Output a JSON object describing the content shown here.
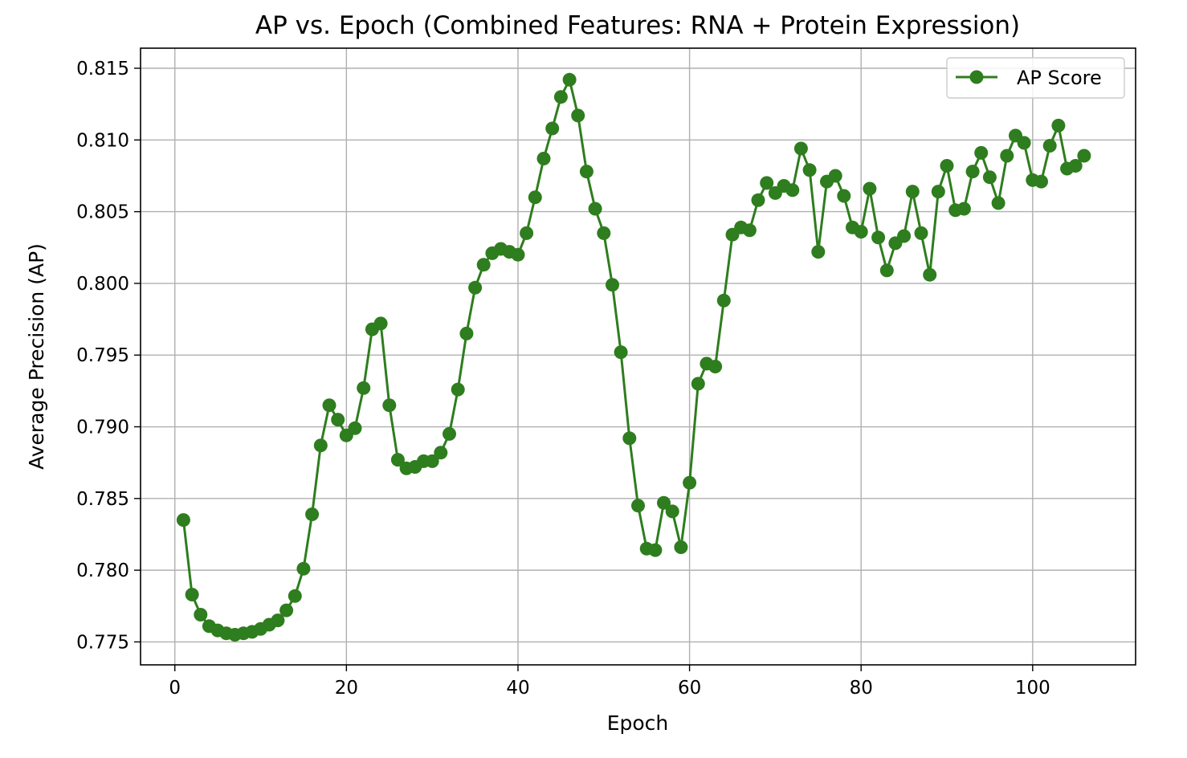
{
  "chart_data": {
    "type": "line",
    "title": "AP vs. Epoch (Combined Features: RNA + Protein Expression)",
    "xlabel": "Epoch",
    "ylabel": "Average Precision (AP)",
    "xlim": [
      -4,
      112
    ],
    "ylim": [
      0.7734,
      0.8164
    ],
    "xticks": [
      0,
      20,
      40,
      60,
      80,
      100
    ],
    "yticks": [
      0.775,
      0.78,
      0.785,
      0.79,
      0.795,
      0.8,
      0.805,
      0.81,
      0.815
    ],
    "xtick_labels": [
      "0",
      "20",
      "40",
      "60",
      "80",
      "100"
    ],
    "ytick_labels": [
      "0.775",
      "0.780",
      "0.785",
      "0.790",
      "0.795",
      "0.800",
      "0.805",
      "0.810",
      "0.815"
    ],
    "grid": true,
    "legend_position": "top-right",
    "colors": {
      "line": "#2e7d1e",
      "grid": "#b0b0b0"
    },
    "series": [
      {
        "name": "AP Score",
        "marker": "circle",
        "x": [
          1,
          2,
          3,
          4,
          5,
          6,
          7,
          8,
          9,
          10,
          11,
          12,
          13,
          14,
          15,
          16,
          17,
          18,
          19,
          20,
          21,
          22,
          23,
          24,
          25,
          26,
          27,
          28,
          29,
          30,
          31,
          32,
          33,
          34,
          35,
          36,
          37,
          38,
          39,
          40,
          41,
          42,
          43,
          44,
          45,
          46,
          47,
          48,
          49,
          50,
          51,
          52,
          53,
          54,
          55,
          56,
          57,
          58,
          59,
          60,
          61,
          62,
          63,
          64,
          65,
          66,
          67,
          68,
          69,
          70,
          71,
          72,
          73,
          74,
          75,
          76,
          77,
          78,
          79,
          80,
          81,
          82,
          83,
          84,
          85,
          86,
          87,
          88,
          89,
          90,
          91,
          92,
          93,
          94,
          95,
          96,
          97,
          98,
          99,
          100,
          101,
          102,
          103,
          104,
          105,
          106
        ],
        "y": [
          0.7835,
          0.7783,
          0.7769,
          0.7761,
          0.7758,
          0.7756,
          0.7755,
          0.7756,
          0.7757,
          0.7759,
          0.7762,
          0.7765,
          0.7772,
          0.7782,
          0.7801,
          0.7839,
          0.7887,
          0.7915,
          0.7905,
          0.7894,
          0.7899,
          0.7927,
          0.7968,
          0.7972,
          0.7915,
          0.7877,
          0.7871,
          0.7872,
          0.7876,
          0.7876,
          0.7882,
          0.7895,
          0.7926,
          0.7965,
          0.7997,
          0.8013,
          0.8021,
          0.8024,
          0.8022,
          0.802,
          0.8035,
          0.806,
          0.8087,
          0.8108,
          0.813,
          0.8142,
          0.8117,
          0.8078,
          0.8052,
          0.8035,
          0.7999,
          0.7952,
          0.7892,
          0.7845,
          0.7815,
          0.7814,
          0.7847,
          0.7841,
          0.7816,
          0.7861,
          0.793,
          0.7944,
          0.7942,
          0.7988,
          0.8034,
          0.8039,
          0.8037,
          0.8058,
          0.807,
          0.8063,
          0.8068,
          0.8065,
          0.8094,
          0.8079,
          0.8022,
          0.8071,
          0.8075,
          0.8061,
          0.8039,
          0.8036,
          0.8066,
          0.8032,
          0.8009,
          0.8028,
          0.8033,
          0.8064,
          0.8035,
          0.8006,
          0.8064,
          0.8082,
          0.8051,
          0.8052,
          0.8078,
          0.8091,
          0.8074,
          0.8056,
          0.8089,
          0.8103,
          0.8098,
          0.8072,
          0.8071,
          0.8096,
          0.811,
          0.808,
          0.8082,
          0.8089
        ]
      }
    ]
  }
}
